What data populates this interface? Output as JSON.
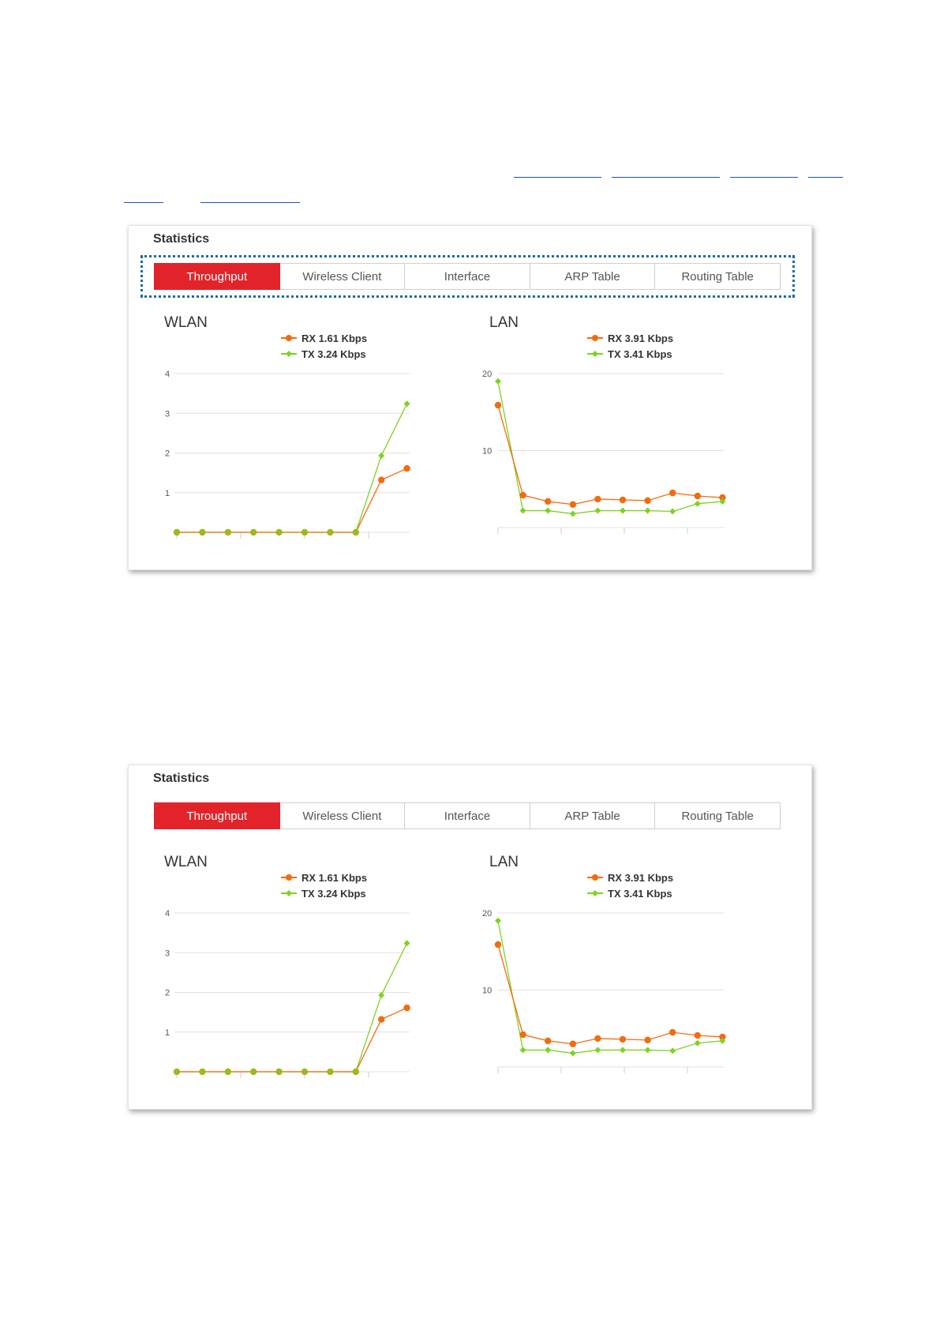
{
  "colors": {
    "accent": "#e3232a",
    "rx": "#f26b0f",
    "tx": "#7ed321",
    "overlap": "#9aba1e",
    "highlight": "#1b6aa5"
  },
  "panels": [
    {
      "title": "Statistics",
      "tabs": [
        {
          "label": "Throughput",
          "active": true
        },
        {
          "label": "Wireless Client",
          "active": false
        },
        {
          "label": "Interface",
          "active": false
        },
        {
          "label": "ARP Table",
          "active": false
        },
        {
          "label": "Routing Table",
          "active": false
        }
      ],
      "highlighted_tabs": true,
      "wlan": {
        "title": "WLAN",
        "rx_label": "RX 1.61 Kbps",
        "tx_label": "TX 3.24 Kbps"
      },
      "lan": {
        "title": "LAN",
        "rx_label": "RX 3.91 Kbps",
        "tx_label": "TX 3.41 Kbps"
      }
    },
    {
      "title": "Statistics",
      "tabs": [
        {
          "label": "Throughput",
          "active": true
        },
        {
          "label": "Wireless Client",
          "active": false
        },
        {
          "label": "Interface",
          "active": false
        },
        {
          "label": "ARP Table",
          "active": false
        },
        {
          "label": "Routing Table",
          "active": false
        }
      ],
      "highlighted_tabs": false,
      "wlan": {
        "title": "WLAN",
        "rx_label": "RX 1.61 Kbps",
        "tx_label": "TX 3.24 Kbps"
      },
      "lan": {
        "title": "LAN",
        "rx_label": "RX 3.91 Kbps",
        "tx_label": "TX 3.41 Kbps"
      }
    }
  ],
  "chart_data": [
    {
      "type": "line",
      "title": "WLAN",
      "ylim": [
        0,
        4
      ],
      "yticks": [
        "1",
        "2",
        "3",
        "4"
      ],
      "grid": true,
      "legend": "top-center",
      "x": [
        1,
        2,
        3,
        4,
        5,
        6,
        7,
        8,
        9,
        10
      ],
      "series": [
        {
          "name": "RX 1.61 Kbps",
          "values": [
            0,
            0,
            0,
            0,
            0,
            0,
            0,
            0,
            1.32,
            1.61
          ]
        },
        {
          "name": "TX 3.24 Kbps",
          "values": [
            0,
            0,
            0,
            0,
            0,
            0,
            0,
            0,
            1.93,
            3.24
          ]
        }
      ]
    },
    {
      "type": "line",
      "title": "LAN",
      "ylim": [
        0,
        20
      ],
      "yticks": [
        "10",
        "20"
      ],
      "grid": true,
      "legend": "top-center",
      "x": [
        1,
        2,
        3,
        4,
        5,
        6,
        7,
        8,
        9,
        10
      ],
      "series": [
        {
          "name": "RX 3.91 Kbps",
          "values": [
            15.9,
            4.2,
            3.4,
            3.0,
            3.7,
            3.6,
            3.5,
            4.5,
            4.1,
            3.9
          ]
        },
        {
          "name": "TX 3.41 Kbps",
          "values": [
            19.0,
            2.2,
            2.2,
            1.8,
            2.2,
            2.2,
            2.2,
            2.1,
            3.1,
            3.4
          ]
        }
      ]
    }
  ]
}
